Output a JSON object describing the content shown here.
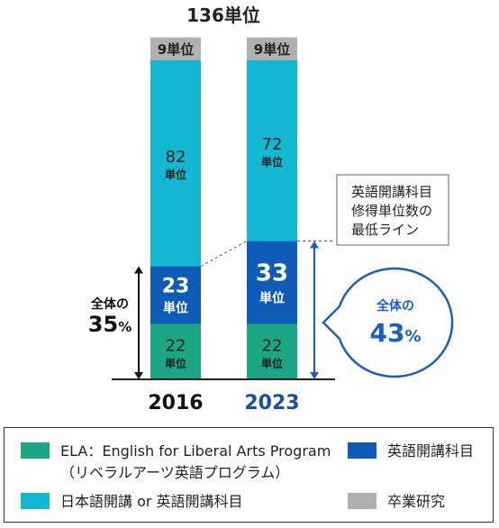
{
  "chart_data": {
    "type": "bar",
    "stacked": true,
    "categories": [
      "2016",
      "2023"
    ],
    "total_label": "136単位",
    "series": [
      {
        "key": "ela",
        "values": [
          22,
          22
        ],
        "labels": [
          "22\n単位",
          "22\n単位"
        ],
        "color": "#1ca685"
      },
      {
        "key": "english",
        "values": [
          23,
          33
        ],
        "labels": [
          "23\n単位",
          "33\n単位"
        ],
        "color": "#0f5cb8"
      },
      {
        "key": "jp_or_en",
        "values": [
          82,
          72
        ],
        "labels": [
          "82\n単位",
          "72\n単位"
        ],
        "color": "#13b7d1"
      },
      {
        "key": "thesis",
        "values": [
          9,
          9
        ],
        "labels": [
          "9単位",
          "9単位"
        ],
        "color": "#b0b0b0"
      }
    ],
    "annotations": {
      "left_share": {
        "line1": "全体の",
        "value": "35",
        "unit": "%"
      },
      "right_share": {
        "line1": "全体の",
        "value": "43",
        "unit": "%"
      },
      "callout": [
        "英語開講科目",
        "修得単位数の",
        "最低ライン"
      ]
    },
    "category_colors": [
      "#111111",
      "#1a4fa8"
    ],
    "legend": [
      {
        "label_lines": [
          "ELA：English for Liberal Arts Program",
          "（リベラルアーツ英語プログラム）"
        ],
        "color": "#1ca685"
      },
      {
        "label_lines": [
          "英語開講科目"
        ],
        "color": "#0f5cb8"
      },
      {
        "label_lines": [
          "日本語開講 or 英語開講科目"
        ],
        "color": "#13b7d1"
      },
      {
        "label_lines": [
          "卒業研究"
        ],
        "color": "#b0b0b0"
      }
    ]
  }
}
